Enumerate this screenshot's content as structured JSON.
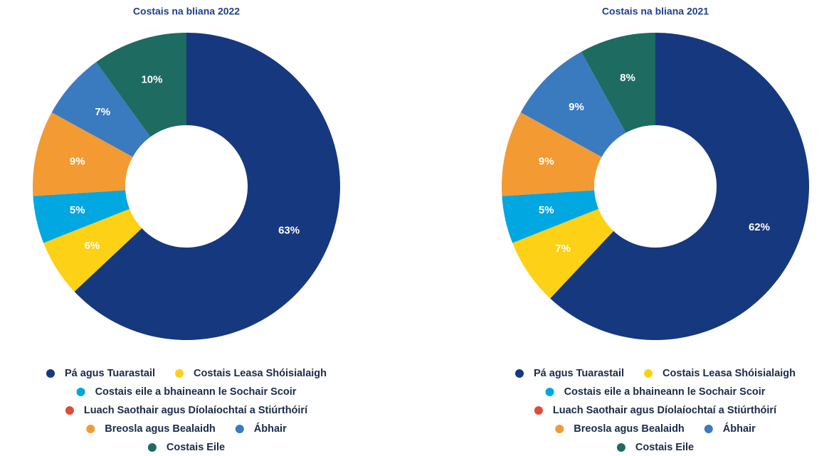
{
  "chart_data": [
    {
      "type": "pie",
      "title": "Costais na bliana 2022",
      "categories": [
        "Pá agus Tuarastail",
        "Costais Leasa Shóisialaigh",
        "Costais eile a bhaineann le Sochair Scoir",
        "Luach Saothair agus Díolaíochtaí a Stiúrthóirí",
        "Breosla agus Bealaidh",
        "Ábhair",
        "Costais Eile"
      ],
      "values": [
        63,
        6,
        5,
        0,
        9,
        7,
        10
      ],
      "value_labels": [
        "63%",
        "6%",
        "5%",
        null,
        "9%",
        "7%",
        "10%"
      ],
      "colors": [
        "#16387f",
        "#fcd116",
        "#00a7e1",
        "#e04b3a",
        "#f39a33",
        "#3a7abf",
        "#1d6b61"
      ]
    },
    {
      "type": "pie",
      "title": "Costais na bliana 2021",
      "categories": [
        "Pá agus Tuarastail",
        "Costais Leasa Shóisialaigh",
        "Costais eile a bhaineann le Sochair Scoir",
        "Luach Saothair agus Díolaíochtaí a Stiúrthóirí",
        "Breosla agus Bealaidh",
        "Ábhair",
        "Costais Eile"
      ],
      "values": [
        62,
        7,
        5,
        0,
        9,
        9,
        8
      ],
      "value_labels": [
        "62%",
        "7%",
        "5%",
        null,
        "9%",
        "9%",
        "8%"
      ],
      "colors": [
        "#16387f",
        "#fcd116",
        "#00a7e1",
        "#e04b3a",
        "#f39a33",
        "#3a7abf",
        "#1d6b61"
      ]
    }
  ]
}
